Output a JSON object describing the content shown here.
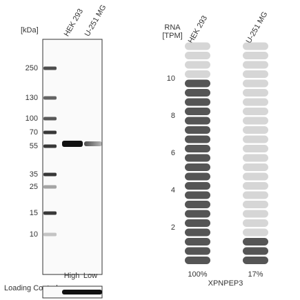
{
  "blot": {
    "unit": "[kDa]",
    "lanes": [
      "HEK 293",
      "U-251 MG"
    ],
    "markers": [
      "250",
      "130",
      "100",
      "70",
      "55",
      "35",
      "25",
      "15",
      "10"
    ],
    "levels": [
      "High",
      "Low"
    ],
    "loading": "Loading Control"
  },
  "rna": {
    "unit_line1": "RNA",
    "unit_line2": "[TPM]",
    "ticks": [
      10,
      8,
      6,
      4,
      2
    ],
    "total_pills": 24,
    "gene": "XPNPEP3",
    "samples": [
      {
        "name": "HEK 293",
        "filled": 20,
        "percent": "100%"
      },
      {
        "name": "U-251 MG",
        "filled": 3,
        "percent": "17%"
      }
    ]
  }
}
